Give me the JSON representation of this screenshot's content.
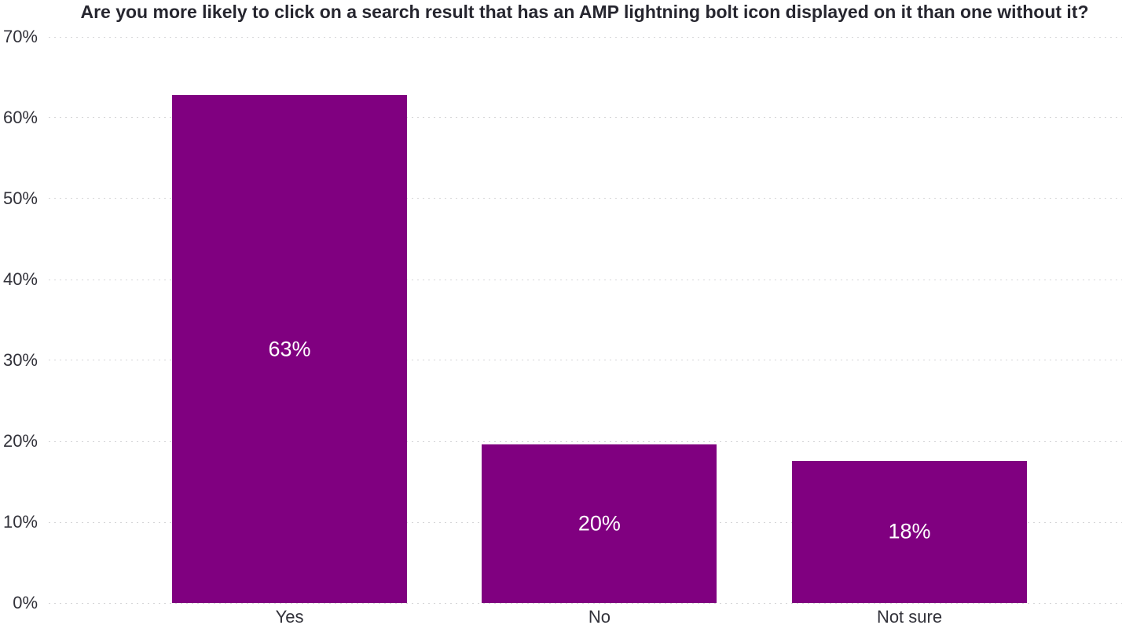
{
  "title": "Are you more likely to click on a search result that has an AMP lightning bolt icon displayed on it than one without it?",
  "colors": {
    "bar_fill": "#800080",
    "title_text": "#26262f",
    "axis_text": "#32323a",
    "gridline": "#d6d6d8",
    "data_label_text": "#ffffff",
    "background": "#ffffff"
  },
  "chart_data": {
    "type": "bar",
    "title": "Are you more likely to click on a search result that has an AMP lightning bolt icon displayed on it than one without it?",
    "categories": [
      "Yes",
      "No",
      "Not sure"
    ],
    "values": [
      62.8,
      19.6,
      17.6
    ],
    "data_labels": [
      "63%",
      "20%",
      "18%"
    ],
    "xlabel": "",
    "ylabel": "",
    "ylim": [
      0,
      70
    ],
    "y_ticks": [
      0,
      10,
      20,
      30,
      40,
      50,
      60,
      70
    ],
    "y_tick_format": "percent",
    "grid": "horizontal-dotted",
    "legend": "none",
    "orientation": "vertical"
  }
}
